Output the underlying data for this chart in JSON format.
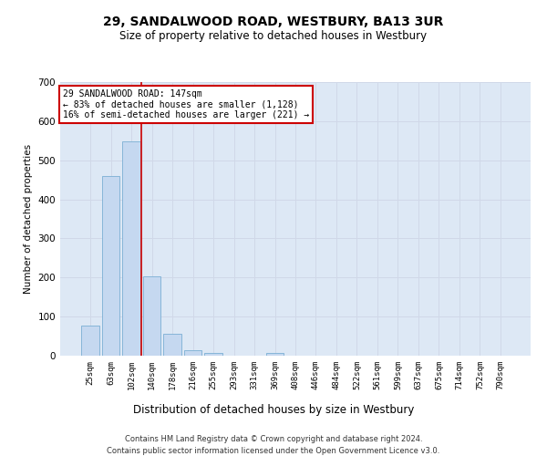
{
  "title": "29, SANDALWOOD ROAD, WESTBURY, BA13 3UR",
  "subtitle": "Size of property relative to detached houses in Westbury",
  "xlabel": "Distribution of detached houses by size in Westbury",
  "ylabel": "Number of detached properties",
  "categories": [
    "25sqm",
    "63sqm",
    "102sqm",
    "140sqm",
    "178sqm",
    "216sqm",
    "255sqm",
    "293sqm",
    "331sqm",
    "369sqm",
    "408sqm",
    "446sqm",
    "484sqm",
    "522sqm",
    "561sqm",
    "599sqm",
    "637sqm",
    "675sqm",
    "714sqm",
    "752sqm",
    "790sqm"
  ],
  "values": [
    78,
    460,
    548,
    203,
    57,
    14,
    8,
    0,
    0,
    8,
    0,
    0,
    0,
    0,
    0,
    0,
    0,
    0,
    0,
    0,
    0
  ],
  "bar_color": "#c5d8f0",
  "bar_edge_color": "#7bafd4",
  "vline_color": "#cc0000",
  "vline_x_index": 2.5,
  "ylim": [
    0,
    700
  ],
  "yticks": [
    0,
    100,
    200,
    300,
    400,
    500,
    600,
    700
  ],
  "annotation_title": "29 SANDALWOOD ROAD: 147sqm",
  "annotation_line1": "← 83% of detached houses are smaller (1,128)",
  "annotation_line2": "16% of semi-detached houses are larger (221) →",
  "annotation_box_color": "#ffffff",
  "annotation_box_edge": "#cc0000",
  "grid_color": "#d0d8e8",
  "background_color": "#dde8f5",
  "footer_line1": "Contains HM Land Registry data © Crown copyright and database right 2024.",
  "footer_line2": "Contains public sector information licensed under the Open Government Licence v3.0."
}
